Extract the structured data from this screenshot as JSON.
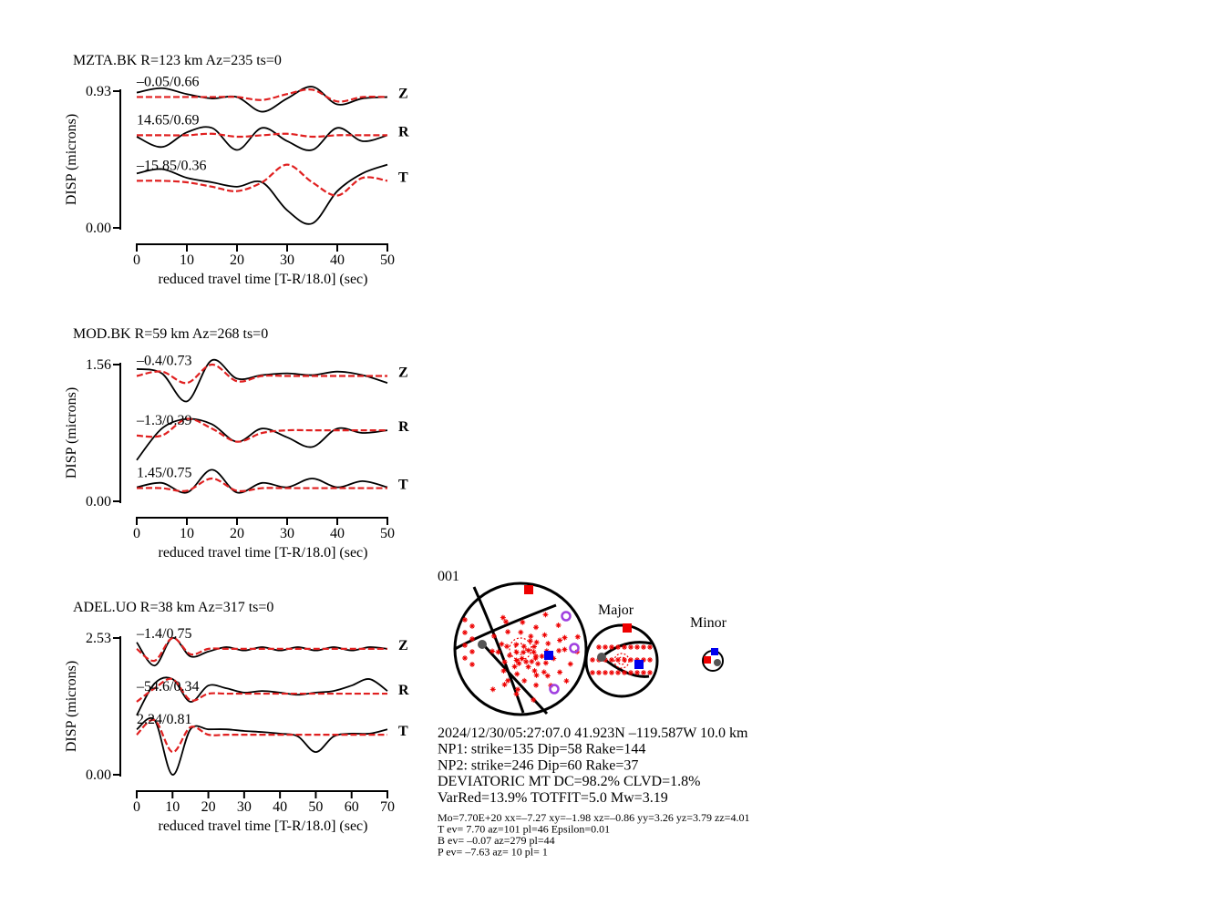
{
  "chart_data": [
    {
      "type": "waveform",
      "title": "MZTA.BK R=123 km Az=235 ts=0",
      "y_label": "DISP (microns)",
      "x_label": "reduced travel time [T-R/18.0] (sec)",
      "xlim": [
        0,
        50
      ],
      "xticks": [
        0,
        10,
        20,
        30,
        40,
        50
      ],
      "ylim": [
        0,
        0.93
      ],
      "yticks": [
        {
          "value": 0,
          "label": "0.00"
        },
        {
          "value": 0.93,
          "label": "0.93"
        }
      ],
      "x": [
        0,
        5,
        10,
        15,
        20,
        25,
        30,
        35,
        40,
        45,
        50
      ],
      "components": [
        {
          "name": "Z",
          "annotation": "–0.05/0.66",
          "observed": {
            "color": "#000000",
            "values": [
              0.92,
              0.95,
              0.91,
              0.88,
              0.89,
              0.79,
              0.88,
              0.96,
              0.84,
              0.88,
              0.89
            ]
          },
          "synthetic": {
            "color": "#e02020",
            "values": [
              0.89,
              0.89,
              0.89,
              0.89,
              0.89,
              0.87,
              0.91,
              0.94,
              0.86,
              0.89,
              0.89
            ]
          }
        },
        {
          "name": "R",
          "annotation": "14.65/0.69",
          "observed": {
            "color": "#000000",
            "values": [
              0.62,
              0.55,
              0.65,
              0.68,
              0.53,
              0.68,
              0.59,
              0.53,
              0.68,
              0.59,
              0.63
            ]
          },
          "synthetic": {
            "color": "#e02020",
            "values": [
              0.63,
              0.63,
              0.63,
              0.64,
              0.62,
              0.63,
              0.64,
              0.62,
              0.63,
              0.63,
              0.63
            ]
          }
        },
        {
          "name": "T",
          "annotation": "–15.85/0.36",
          "observed": {
            "color": "#000000",
            "values": [
              0.37,
              0.4,
              0.34,
              0.31,
              0.28,
              0.31,
              0.12,
              0.03,
              0.25,
              0.37,
              0.43
            ]
          },
          "synthetic": {
            "color": "#e02020",
            "values": [
              0.32,
              0.32,
              0.31,
              0.28,
              0.25,
              0.31,
              0.43,
              0.31,
              0.22,
              0.34,
              0.32
            ]
          }
        }
      ]
    },
    {
      "type": "waveform",
      "title": "MOD.BK R=59 km Az=268 ts=0",
      "y_label": "DISP (microns)",
      "x_label": "reduced travel time [T-R/18.0] (sec)",
      "xlim": [
        0,
        50
      ],
      "xticks": [
        0,
        10,
        20,
        30,
        40,
        50
      ],
      "ylim": [
        0,
        1.56
      ],
      "yticks": [
        {
          "value": 0,
          "label": "0.00"
        },
        1.56
      ],
      "x": [
        0,
        5,
        10,
        15,
        20,
        25,
        30,
        35,
        40,
        45,
        50
      ],
      "components": [
        {
          "name": "Z",
          "annotation": "–0.4/0.73",
          "observed": {
            "color": "#000000",
            "values": [
              1.51,
              1.46,
              1.14,
              1.61,
              1.4,
              1.44,
              1.46,
              1.44,
              1.48,
              1.44,
              1.35
            ]
          },
          "synthetic": {
            "color": "#e02020",
            "values": [
              1.43,
              1.48,
              1.35,
              1.56,
              1.37,
              1.43,
              1.43,
              1.43,
              1.43,
              1.43,
              1.43
            ]
          }
        },
        {
          "name": "R",
          "annotation": "–1.3/0.39",
          "observed": {
            "color": "#000000",
            "values": [
              0.47,
              0.83,
              0.94,
              0.88,
              0.68,
              0.83,
              0.73,
              0.62,
              0.83,
              0.78,
              0.81
            ]
          },
          "synthetic": {
            "color": "#e02020",
            "values": [
              0.75,
              0.75,
              0.94,
              0.83,
              0.68,
              0.78,
              0.81,
              0.81,
              0.81,
              0.81,
              0.81
            ]
          }
        },
        {
          "name": "T",
          "annotation": "1.45/0.75",
          "observed": {
            "color": "#000000",
            "values": [
              0.16,
              0.21,
              0.1,
              0.36,
              0.1,
              0.21,
              0.16,
              0.26,
              0.16,
              0.23,
              0.16
            ]
          },
          "synthetic": {
            "color": "#e02020",
            "values": [
              0.15,
              0.15,
              0.12,
              0.26,
              0.12,
              0.15,
              0.15,
              0.15,
              0.15,
              0.15,
              0.15
            ]
          }
        }
      ]
    },
    {
      "type": "waveform",
      "title": "ADEL.UO R=38 km Az=317 ts=0",
      "y_label": "DISP (microns)",
      "x_label": "reduced travel time [T-R/18.0] (sec)",
      "xlim": [
        0,
        70
      ],
      "xticks": [
        0,
        10,
        20,
        30,
        40,
        50,
        60,
        70
      ],
      "ylim": [
        0,
        2.53
      ],
      "yticks": [
        {
          "value": 0,
          "label": "0.00"
        },
        2.53
      ],
      "x": [
        0,
        5,
        10,
        15,
        20,
        25,
        30,
        35,
        40,
        45,
        50,
        55,
        60,
        65,
        70
      ],
      "components": [
        {
          "name": "Z",
          "annotation": "–1.4/0.75",
          "observed": {
            "color": "#000000",
            "values": [
              2.45,
              2.02,
              2.53,
              2.19,
              2.28,
              2.36,
              2.3,
              2.36,
              2.3,
              2.36,
              2.3,
              2.36,
              2.3,
              2.36,
              2.33
            ]
          },
          "synthetic": {
            "color": "#e02020",
            "values": [
              2.33,
              2.11,
              2.53,
              2.23,
              2.33,
              2.33,
              2.33,
              2.33,
              2.33,
              2.33,
              2.33,
              2.33,
              2.33,
              2.33,
              2.33
            ]
          }
        },
        {
          "name": "R",
          "annotation": "–54.6/0.34",
          "observed": {
            "color": "#000000",
            "values": [
              1.1,
              1.69,
              1.77,
              1.35,
              1.65,
              1.6,
              1.52,
              1.55,
              1.52,
              1.48,
              1.52,
              1.55,
              1.65,
              1.77,
              1.55
            ]
          },
          "synthetic": {
            "color": "#e02020",
            "values": [
              1.35,
              1.6,
              1.77,
              1.38,
              1.5,
              1.5,
              1.5,
              1.5,
              1.5,
              1.5,
              1.5,
              1.5,
              1.5,
              1.5,
              1.5
            ]
          }
        },
        {
          "name": "T",
          "annotation": "2.24/0.81",
          "observed": {
            "color": "#000000",
            "values": [
              0.84,
              1.01,
              0,
              0.84,
              0.84,
              0.84,
              0.81,
              0.79,
              0.76,
              0.71,
              0.42,
              0.71,
              0.76,
              0.76,
              0.84
            ]
          },
          "synthetic": {
            "color": "#e02020",
            "values": [
              0.74,
              1.01,
              0.42,
              0.88,
              0.74,
              0.74,
              0.74,
              0.74,
              0.74,
              0.74,
              0.74,
              0.74,
              0.74,
              0.74,
              0.74
            ]
          }
        }
      ]
    }
  ],
  "mechanism": {
    "id": "001",
    "major": "Major",
    "minor": "Minor",
    "lines": [
      "2024/12/30/05:27:07.0 41.923N –119.587W 10.0 km",
      "NP1: strike=135 Dip=58 Rake=144",
      "NP2: strike=246 Dip=60 Rake=37",
      "DEVIATORIC MT DC=98.2% CLVD=1.8%",
      "VarRed=13.9% TOTFIT=5.0 Mw=3.19"
    ],
    "details": [
      "Mo=7.70E+20 xx=–7.27 xy=–1.98 xz=–0.86 yy=3.26 yz=3.79 zz=4.01",
      "T ev=  7.70 az=101 pl=46 Epsilon=0.01",
      "B ev= –0.07 az=279 pl=44",
      "P ev= –7.63 az= 10 pl= 1"
    ]
  }
}
